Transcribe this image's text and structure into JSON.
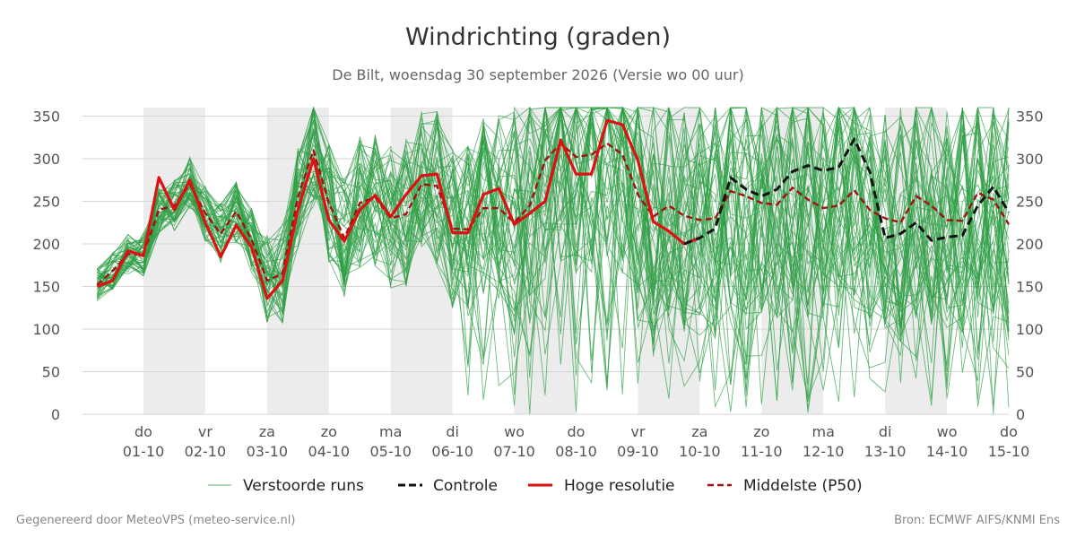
{
  "chart_data": {
    "type": "line",
    "title": "Windrichting (graden)",
    "subtitle": "De Bilt, woensdag 30 september 2026 (Versie wo 00 uur)",
    "ylim": [
      0,
      360
    ],
    "yticks": [
      0,
      50,
      100,
      150,
      200,
      250,
      300,
      350
    ],
    "x_unit": "days since 2026-09-30 00:00",
    "xlim": [
      0.25,
      15.0
    ],
    "grid": true,
    "legend_position": "bottom",
    "shaded_days": [
      [
        1,
        2
      ],
      [
        3,
        4
      ],
      [
        5,
        6
      ],
      [
        7,
        8
      ],
      [
        9,
        10
      ],
      [
        11,
        12
      ],
      [
        13,
        14
      ]
    ],
    "day_ticks": [
      {
        "day": "do",
        "date": "01-10"
      },
      {
        "day": "vr",
        "date": "02-10"
      },
      {
        "day": "za",
        "date": "03-10"
      },
      {
        "day": "zo",
        "date": "04-10"
      },
      {
        "day": "ma",
        "date": "05-10"
      },
      {
        "day": "di",
        "date": "06-10"
      },
      {
        "day": "wo",
        "date": "07-10"
      },
      {
        "day": "do",
        "date": "08-10"
      },
      {
        "day": "vr",
        "date": "09-10"
      },
      {
        "day": "za",
        "date": "10-10"
      },
      {
        "day": "zo",
        "date": "11-10"
      },
      {
        "day": "ma",
        "date": "12-10"
      },
      {
        "day": "di",
        "date": "13-10"
      },
      {
        "day": "wo",
        "date": "14-10"
      },
      {
        "day": "do",
        "date": "15-10"
      }
    ],
    "series": [
      {
        "name": "Hoge resolutie",
        "color": "#dd1111",
        "style": "solid",
        "x": [
          0.25,
          0.5,
          0.75,
          1.0,
          1.25,
          1.5,
          1.75,
          2.0,
          2.25,
          2.5,
          2.75,
          3.0,
          3.25,
          3.5,
          3.75,
          4.0,
          4.25,
          4.5,
          4.75,
          5.0,
          5.25,
          5.5,
          5.75,
          6.0,
          6.25,
          6.5,
          6.75,
          7.0,
          7.25,
          7.5,
          7.75,
          8.0,
          8.25,
          8.5,
          8.75,
          9.0,
          9.25,
          9.5,
          9.75,
          10.0
        ],
        "values": [
          150,
          157,
          192,
          186,
          278,
          240,
          275,
          225,
          185,
          222,
          196,
          136,
          157,
          240,
          300,
          228,
          203,
          240,
          257,
          232,
          258,
          280,
          282,
          213,
          213,
          258,
          265,
          223,
          236,
          250,
          322,
          282,
          282,
          345,
          340,
          298,
          226,
          215,
          200,
          207
        ]
      },
      {
        "name": "Controle",
        "color": "#111111",
        "style": "dashed",
        "x": [
          9.75,
          10.0,
          10.25,
          10.5,
          10.75,
          11.0,
          11.25,
          11.5,
          11.75,
          12.0,
          12.25,
          12.5,
          12.75,
          13.0,
          13.25,
          13.5,
          13.75,
          14.0,
          14.25,
          14.5,
          14.75,
          15.0
        ],
        "values": [
          200,
          207,
          218,
          278,
          264,
          256,
          264,
          285,
          292,
          286,
          290,
          323,
          285,
          207,
          212,
          225,
          204,
          208,
          210,
          245,
          267,
          237
        ]
      },
      {
        "name": "Middelste (P50)",
        "color": "#a01212",
        "style": "dashed",
        "x": [
          0.25,
          0.5,
          0.75,
          1.0,
          1.25,
          1.5,
          1.75,
          2.0,
          2.25,
          2.5,
          2.75,
          3.0,
          3.25,
          3.5,
          3.75,
          4.0,
          4.25,
          4.5,
          4.75,
          5.0,
          5.25,
          5.5,
          5.75,
          6.0,
          6.25,
          6.5,
          6.75,
          7.0,
          7.25,
          7.5,
          7.75,
          8.0,
          8.25,
          8.5,
          8.75,
          9.0,
          9.25,
          9.5,
          9.75,
          10.0,
          10.25,
          10.5,
          10.75,
          11.0,
          11.25,
          11.5,
          11.75,
          12.0,
          12.25,
          12.5,
          12.75,
          13.0,
          13.25,
          13.5,
          13.75,
          14.0,
          14.25,
          14.5,
          14.75,
          15.0
        ],
        "values": [
          152,
          168,
          188,
          188,
          240,
          245,
          270,
          236,
          212,
          238,
          205,
          157,
          165,
          255,
          310,
          248,
          207,
          248,
          255,
          230,
          235,
          270,
          268,
          218,
          217,
          242,
          242,
          225,
          245,
          298,
          318,
          302,
          305,
          318,
          305,
          258,
          232,
          245,
          233,
          228,
          230,
          262,
          256,
          248,
          246,
          266,
          252,
          242,
          245,
          263,
          240,
          230,
          225,
          256,
          245,
          228,
          227,
          260,
          252,
          223
        ]
      }
    ],
    "ensemble": {
      "name": "Verstoorde runs",
      "color": "#2e9e44",
      "members": 50,
      "spread_note": "members diverge strongly from day 3, covering 0–360 after day 7"
    },
    "legend": [
      "Verstoorde runs",
      "Controle",
      "Hoge resolutie",
      "Middelste (P50)"
    ]
  },
  "footer": {
    "left": "Gegenereerd door MeteoVPS (meteo-service.nl)",
    "right": "Bron: ECMWF AIFS/KNMI Ens"
  }
}
